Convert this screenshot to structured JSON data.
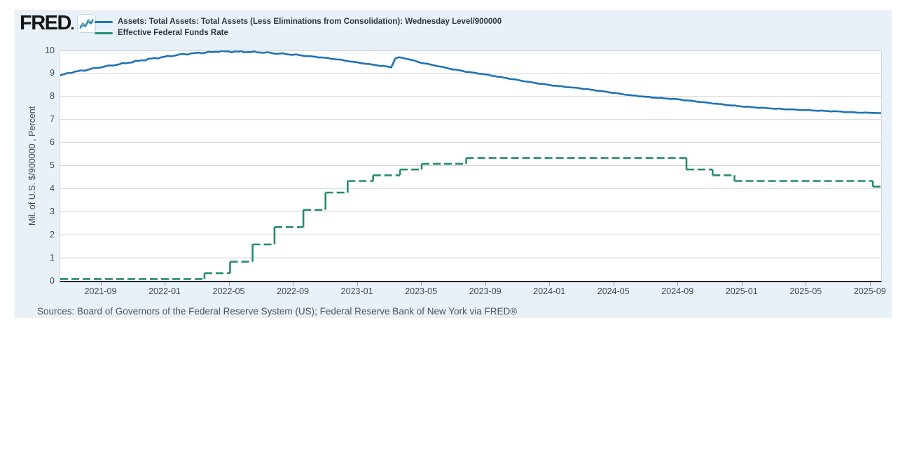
{
  "logo": {
    "text": "FRED",
    "trademark_mark": "registered",
    "icon": "line-chart-icon"
  },
  "footer": {
    "sources": "Sources: Board of Governors of the Federal Reserve System (US); Federal Reserve Bank of New York via FRED®"
  },
  "colors": {
    "panel_background": "#e8f1f8",
    "plot_background": "#ffffff",
    "gridline": "#d4d4d4",
    "axis": "#23262a",
    "tick_text": "#45484e",
    "series1_blue": "#1e73b7",
    "series2_green": "#258b71"
  },
  "chart_data": {
    "type": "line",
    "title": "",
    "xlabel": "",
    "ylabel": "Mil. of U.S. $/900000 , Percent",
    "ylim": [
      0,
      10
    ],
    "y_ticks": [
      0,
      1,
      2,
      3,
      4,
      5,
      6,
      7,
      8,
      9,
      10
    ],
    "grid": true,
    "legend_position": "top-left",
    "x_domain_note": "t = months since 2021-06-17; axis spans 2021-06 to 2025-09",
    "x_tick_t": [
      2.47,
      6.47,
      10.47,
      14.47,
      18.47,
      22.47,
      26.47,
      30.47,
      34.47,
      38.47,
      42.47,
      46.47,
      50.47
    ],
    "x_tick_labels": [
      "2021-09",
      "2022-01",
      "2022-05",
      "2022-09",
      "2023-01",
      "2023-05",
      "2023-09",
      "2024-01",
      "2024-05",
      "2024-09",
      "2025-01",
      "2025-05",
      "2025-09"
    ],
    "t_max": 51.22,
    "series": [
      {
        "name": "Assets: Total Assets: Total Assets (Less Eliminations from Consolidation): Wednesday Level/900000",
        "color": "#1e73b7",
        "style": "solid",
        "points": [
          [
            0,
            8.92
          ],
          [
            0.5,
            9.02
          ],
          [
            1.5,
            9.14
          ],
          [
            2.5,
            9.27
          ],
          [
            3.5,
            9.38
          ],
          [
            4.5,
            9.5
          ],
          [
            5.5,
            9.62
          ],
          [
            6.5,
            9.72
          ],
          [
            7.5,
            9.82
          ],
          [
            8.4,
            9.88
          ],
          [
            9.5,
            9.93
          ],
          [
            9.9,
            9.96
          ],
          [
            10.5,
            9.95
          ],
          [
            11.5,
            9.94
          ],
          [
            12.5,
            9.92
          ],
          [
            13.5,
            9.87
          ],
          [
            14.5,
            9.82
          ],
          [
            15.5,
            9.75
          ],
          [
            16.5,
            9.68
          ],
          [
            17.5,
            9.59
          ],
          [
            18.5,
            9.48
          ],
          [
            19.5,
            9.38
          ],
          [
            20.4,
            9.3
          ],
          [
            20.65,
            9.27
          ],
          [
            20.9,
            9.64
          ],
          [
            21.1,
            9.7
          ],
          [
            21.5,
            9.66
          ],
          [
            21.9,
            9.59
          ],
          [
            22.5,
            9.47
          ],
          [
            23.5,
            9.33
          ],
          [
            24.5,
            9.18
          ],
          [
            25.5,
            9.06
          ],
          [
            26.5,
            8.96
          ],
          [
            27.5,
            8.84
          ],
          [
            28.5,
            8.72
          ],
          [
            29.5,
            8.6
          ],
          [
            30.5,
            8.5
          ],
          [
            31.5,
            8.42
          ],
          [
            32.4,
            8.36
          ],
          [
            33.5,
            8.26
          ],
          [
            34.5,
            8.16
          ],
          [
            35.5,
            8.06
          ],
          [
            36.5,
            7.99
          ],
          [
            37.5,
            7.93
          ],
          [
            38.5,
            7.88
          ],
          [
            39.5,
            7.8
          ],
          [
            40.5,
            7.72
          ],
          [
            41.5,
            7.64
          ],
          [
            42.5,
            7.57
          ],
          [
            43.5,
            7.52
          ],
          [
            44.4,
            7.48
          ],
          [
            45.5,
            7.44
          ],
          [
            46.5,
            7.41
          ],
          [
            47.5,
            7.38
          ],
          [
            48.5,
            7.35
          ],
          [
            49.5,
            7.31
          ],
          [
            50.5,
            7.29
          ],
          [
            51.22,
            7.28
          ]
        ]
      },
      {
        "name": "Effective Federal Funds Rate",
        "color": "#258b71",
        "style": "dashed-step",
        "points": [
          [
            0,
            0.08
          ],
          [
            9.0,
            0.33
          ],
          [
            10.6,
            0.83
          ],
          [
            12.0,
            1.58
          ],
          [
            13.37,
            2.33
          ],
          [
            15.17,
            3.08
          ],
          [
            16.55,
            3.83
          ],
          [
            17.93,
            4.33
          ],
          [
            19.52,
            4.58
          ],
          [
            21.2,
            4.83
          ],
          [
            22.55,
            5.08
          ],
          [
            25.33,
            5.33
          ],
          [
            39.07,
            4.83
          ],
          [
            40.7,
            4.58
          ],
          [
            42.07,
            4.33
          ],
          [
            50.7,
            4.09
          ],
          [
            51.22,
            4.09
          ]
        ]
      }
    ]
  }
}
